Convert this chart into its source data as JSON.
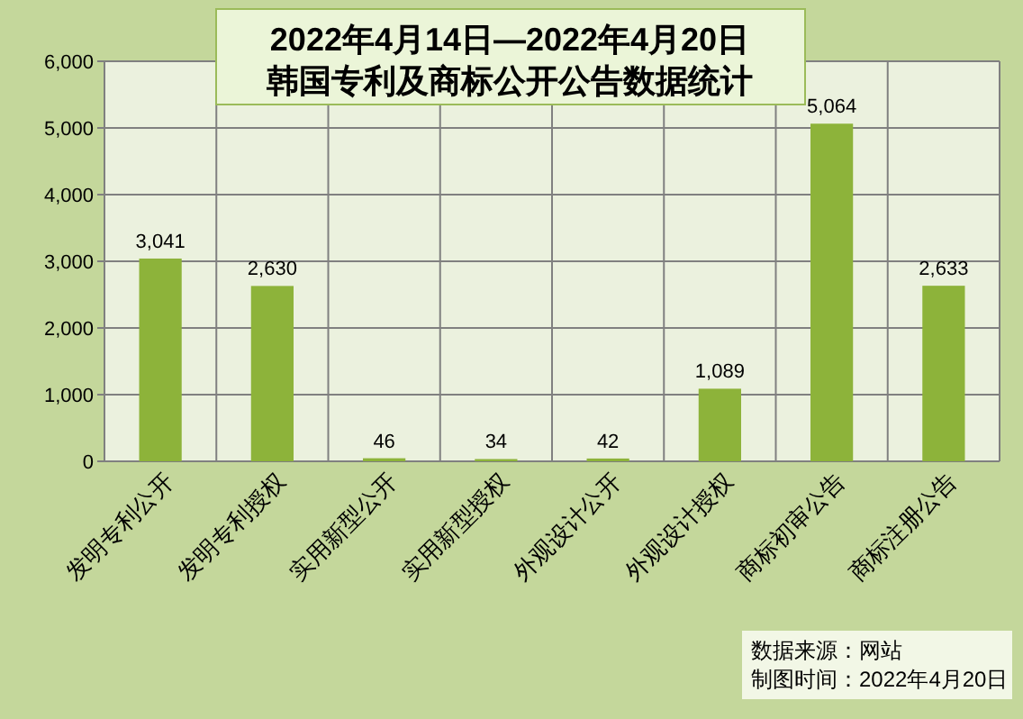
{
  "chart_data": {
    "type": "bar",
    "title": "2022年4月14日—2022年4月20日",
    "subtitle": "韩国专利及商标公开公告数据统计",
    "categories": [
      "发明专利公开",
      "发明专利授权",
      "实用新型公开",
      "实用新型授权",
      "外观设计公开",
      "外观设计授权",
      "商标初审公告",
      "商标注册公告"
    ],
    "values": [
      3041,
      2630,
      46,
      34,
      42,
      1089,
      5064,
      2633
    ],
    "value_labels": [
      "3,041",
      "2,630",
      "46",
      "34",
      "42",
      "1,089",
      "5,064",
      "2,633"
    ],
    "color": "#8db33a",
    "ylim": [
      0,
      6000
    ],
    "yticks": [
      0,
      {
        "value": 1000,
        "label": "1,000"
      },
      {
        "value": 2000,
        "label": "2,000"
      },
      {
        "value": 3000,
        "label": "3,000"
      },
      {
        "value": 4000,
        "label": "4,000"
      },
      {
        "value": 5000,
        "label": "5,000"
      },
      {
        "value": 6000,
        "label": "6,000"
      }
    ],
    "grid": true,
    "annotations": [
      "数据来源：网站",
      "制图时间：2022年4月20日"
    ]
  }
}
